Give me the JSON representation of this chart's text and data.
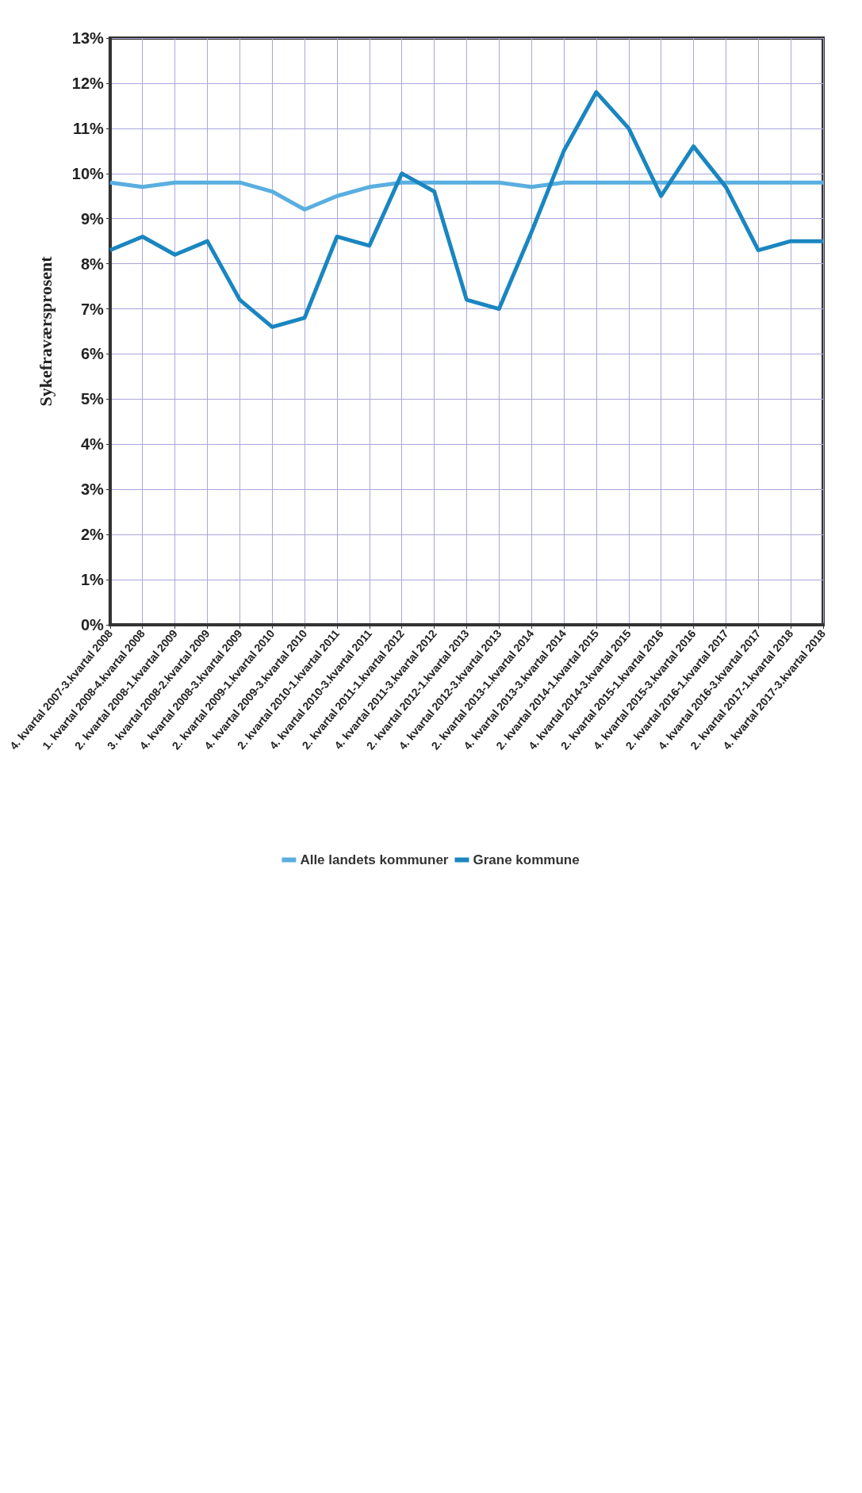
{
  "chart_data": {
    "type": "line",
    "ylabel": "Sykefraværsprosent",
    "categories": [
      "4. kvartal 2007-3.kvartal 2008",
      "1. kvartal 2008-4.kvartal 2008",
      "2. kvartal 2008-1.kvartal 2009",
      "3. kvartal 2008-2.kvartal 2009",
      "4. kvartal 2008-3.kvartal 2009",
      "2. kvartal 2009-1.kvartal 2010",
      "4. kvartal 2009-3.kvartal 2010",
      "2. kvartal 2010-1.kvartal 2011",
      "4. kvartal 2010-3.kvartal 2011",
      "2. kvartal 2011-1.kvartal 2012",
      "4. kvartal 2011-3.kvartal 2012",
      "2. kvartal 2012-1.kvartal 2013",
      "4. kvartal 2012-3.kvartal 2013",
      "2. kvartal 2013-1.kvartal 2014",
      "4. kvartal 2013-3.kvartal 2014",
      "2. kvartal 2014-1.kvartal 2015",
      "4. kvartal 2014-3.kvartal 2015",
      "2. kvartal 2015-1.kvartal 2016",
      "4. kvartal 2015-3.kvartal 2016",
      "2. kvartal 2016-1.kvartal 2017",
      "4. kvartal 2016-3.kvartal 2017",
      "2. kvartal 2017-1.kvartal 2018",
      "4. kvartal 2017-3.kvartal 2018"
    ],
    "series": [
      {
        "name": "Alle landets kommuner",
        "color": "#5aaee0",
        "values": [
          9.8,
          9.7,
          9.8,
          9.8,
          9.8,
          9.6,
          9.2,
          9.5,
          9.7,
          9.8,
          9.8,
          9.8,
          9.8,
          9.7,
          9.8,
          9.8,
          9.8,
          9.8,
          9.8,
          9.8,
          9.8,
          9.8,
          9.8
        ]
      },
      {
        "name": "Grane kommune",
        "color": "#1a86c0",
        "values": [
          8.3,
          8.6,
          8.2,
          8.5,
          7.2,
          6.6,
          6.8,
          8.6,
          8.4,
          10.0,
          9.6,
          7.2,
          7.0,
          8.7,
          10.5,
          11.8,
          11.0,
          9.5,
          10.6,
          9.7,
          8.3,
          8.5,
          8.5
        ]
      }
    ],
    "ylim": [
      0,
      13
    ],
    "yticks": [
      {
        "value": 0,
        "label": "0%"
      },
      {
        "value": 1,
        "label": "1%"
      },
      {
        "value": 2,
        "label": "2%"
      },
      {
        "value": 3,
        "label": "3%"
      },
      {
        "value": 4,
        "label": "4%"
      },
      {
        "value": 5,
        "label": "5%"
      },
      {
        "value": 6,
        "label": "6%"
      },
      {
        "value": 7,
        "label": "7%"
      },
      {
        "value": 8,
        "label": "8%"
      },
      {
        "value": 9,
        "label": "9%"
      },
      {
        "value": 10,
        "label": "10%"
      },
      {
        "value": 11,
        "label": "11%"
      },
      {
        "value": 12,
        "label": "12%"
      },
      {
        "value": 13,
        "label": "13%"
      }
    ],
    "grid": true,
    "legend": "bottom",
    "marker": "none"
  }
}
